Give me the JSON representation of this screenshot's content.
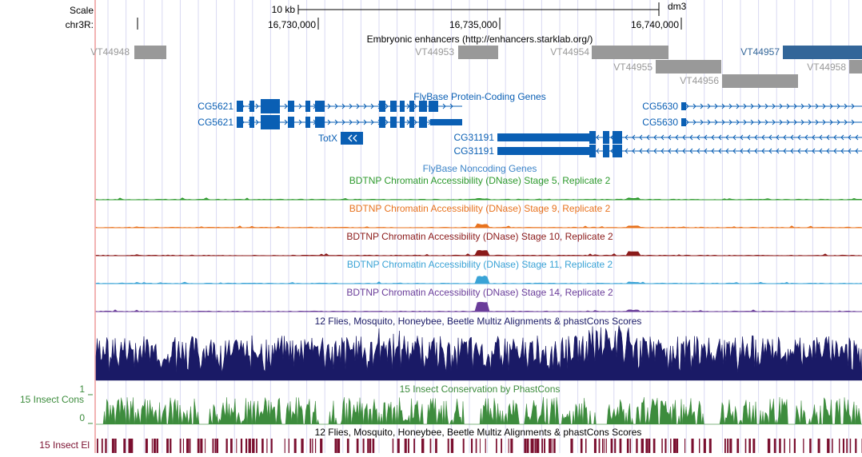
{
  "ruler": {
    "scale_label": "Scale",
    "scale_value": "10 kb",
    "assembly": "dm3",
    "chrom_label": "chr3R:",
    "ticks": [
      "16,730,000",
      "16,735,000",
      "16,740,000"
    ]
  },
  "tracks": {
    "enhancers": {
      "title": "Embryonic enhancers (http://enhancers.starklab.org/)",
      "items": [
        "VT44948",
        "VT44953",
        "VT44954",
        "VT44955",
        "VT44956",
        "VT44957",
        "VT44958"
      ]
    },
    "genes": {
      "title": "FlyBase Protein-Coding Genes",
      "items": [
        "CG5621",
        "CG5621",
        "TotX",
        "CG31191",
        "CG31191",
        "CG5630",
        "CG5630"
      ]
    },
    "noncoding": {
      "title": "FlyBase Noncoding Genes"
    },
    "dnase": [
      {
        "title": "BDTNP Chromatin Accessibility (DNase) Stage 5, Replicate 2",
        "color": "#2e9a2e"
      },
      {
        "title": "BDTNP Chromatin Accessibility (DNase) Stage 9, Replicate 2",
        "color": "#e8731f"
      },
      {
        "title": "BDTNP Chromatin Accessibility (DNase) Stage 10, Replicate 2",
        "color": "#8b1a1a"
      },
      {
        "title": "BDTNP Chromatin Accessibility (DNase) Stage 11, Replicate 2",
        "color": "#3aa3d6"
      },
      {
        "title": "BDTNP Chromatin Accessibility (DNase) Stage 14, Replicate 2",
        "color": "#6a3d9a"
      }
    ],
    "multiz": {
      "title": "12 Flies, Mosquito, Honeybee, Beetle Multiz Alignments & phastCons Scores"
    },
    "phastcons": {
      "title": "15 Insect Conservation by PhastCons",
      "side_label": "15 Insect Cons",
      "y_max": "1",
      "y_min": "0"
    },
    "elements": {
      "title": "12 Flies, Mosquito, Honeybee, Beetle Multiz Alignments & phastCons Scores",
      "side_label": "15 Insect El"
    }
  },
  "colors": {
    "gene_blue": "#0a5fb4",
    "enhancer_gray": "#999999",
    "enhancer_blue": "#336699",
    "multiz_navy": "#1a1a66",
    "phastcons_green": "#3d8c3d",
    "elements_maroon": "#7a0f2f",
    "guide_line": "#d9d9f2",
    "left_border": "#f2b3b3"
  }
}
